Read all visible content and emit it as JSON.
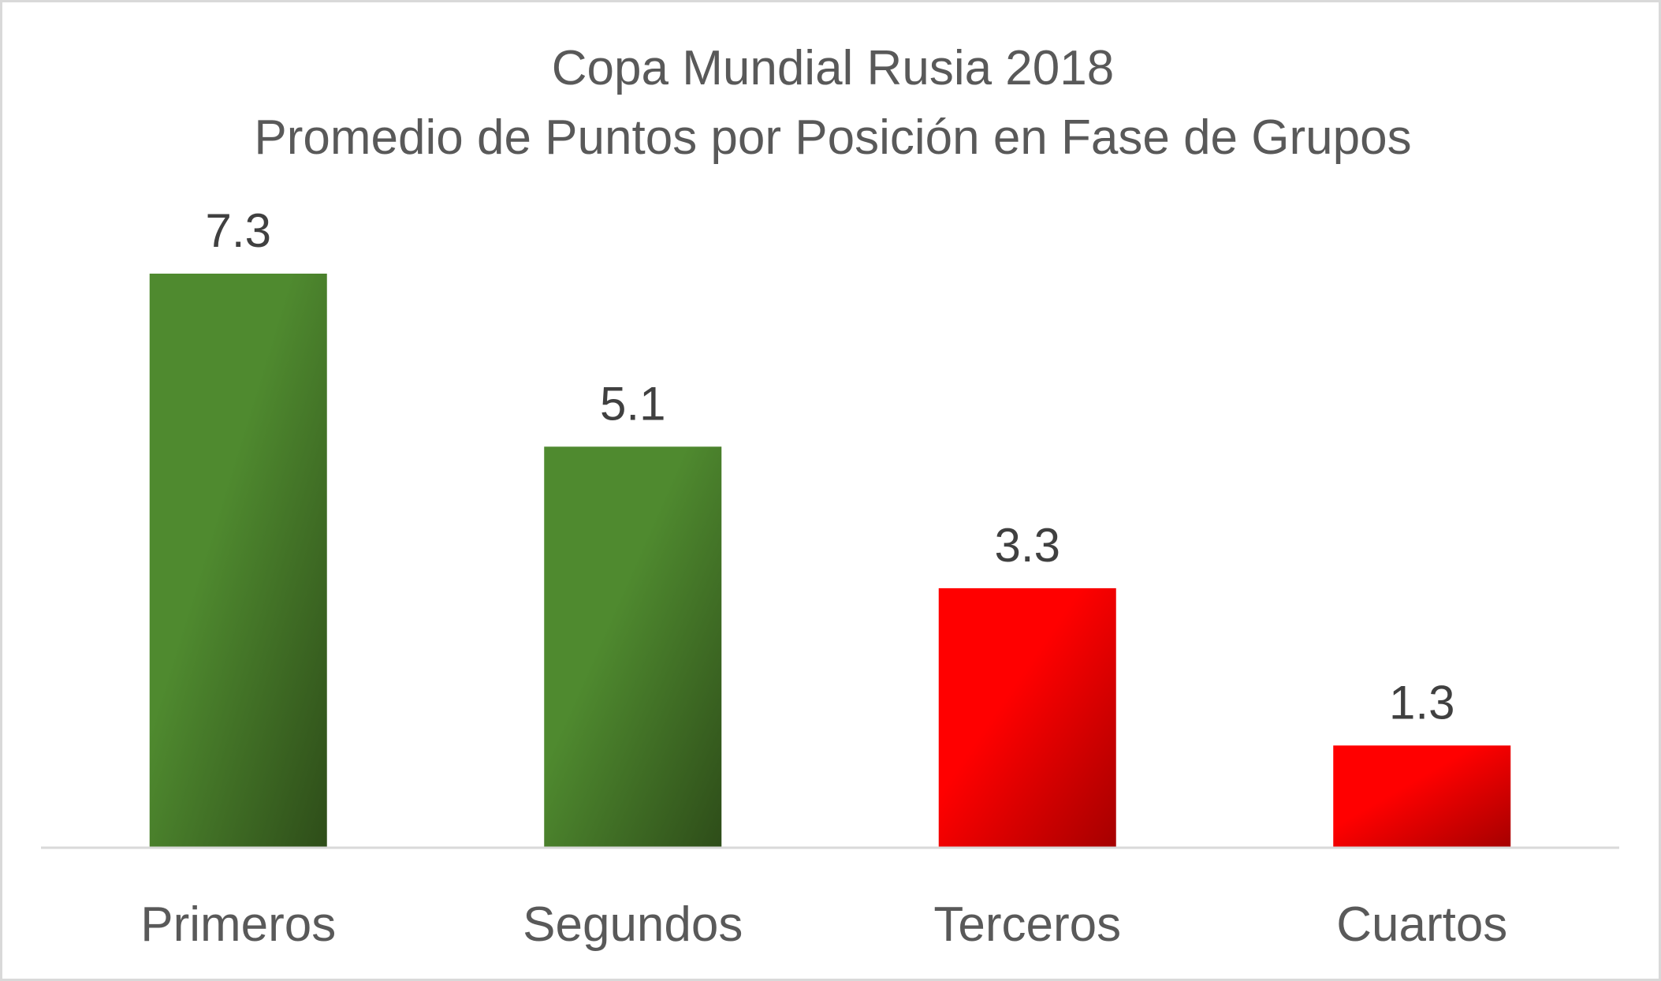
{
  "chart_data": {
    "type": "bar",
    "title": "Copa Mundial Rusia 2018",
    "subtitle": "Promedio de Puntos por Posición en Fase de Grupos",
    "categories": [
      "Primeros",
      "Segundos",
      "Terceros",
      "Cuartos"
    ],
    "values": [
      7.3,
      5.1,
      3.3,
      1.3
    ],
    "data_labels": [
      "7.3",
      "5.1",
      "3.3",
      "1.3"
    ],
    "xlabel": "",
    "ylabel": "",
    "ylim": [
      0,
      7.3
    ],
    "grid": false,
    "legend": "none",
    "bar_colors": [
      "#4f8a2f",
      "#4f8a2f",
      "#ff0000",
      "#ff0000"
    ],
    "bar_colors_dark": [
      "#2e4d19",
      "#2e4d19",
      "#a50000",
      "#a50000"
    ],
    "axis_color": "#d9d9d9"
  }
}
